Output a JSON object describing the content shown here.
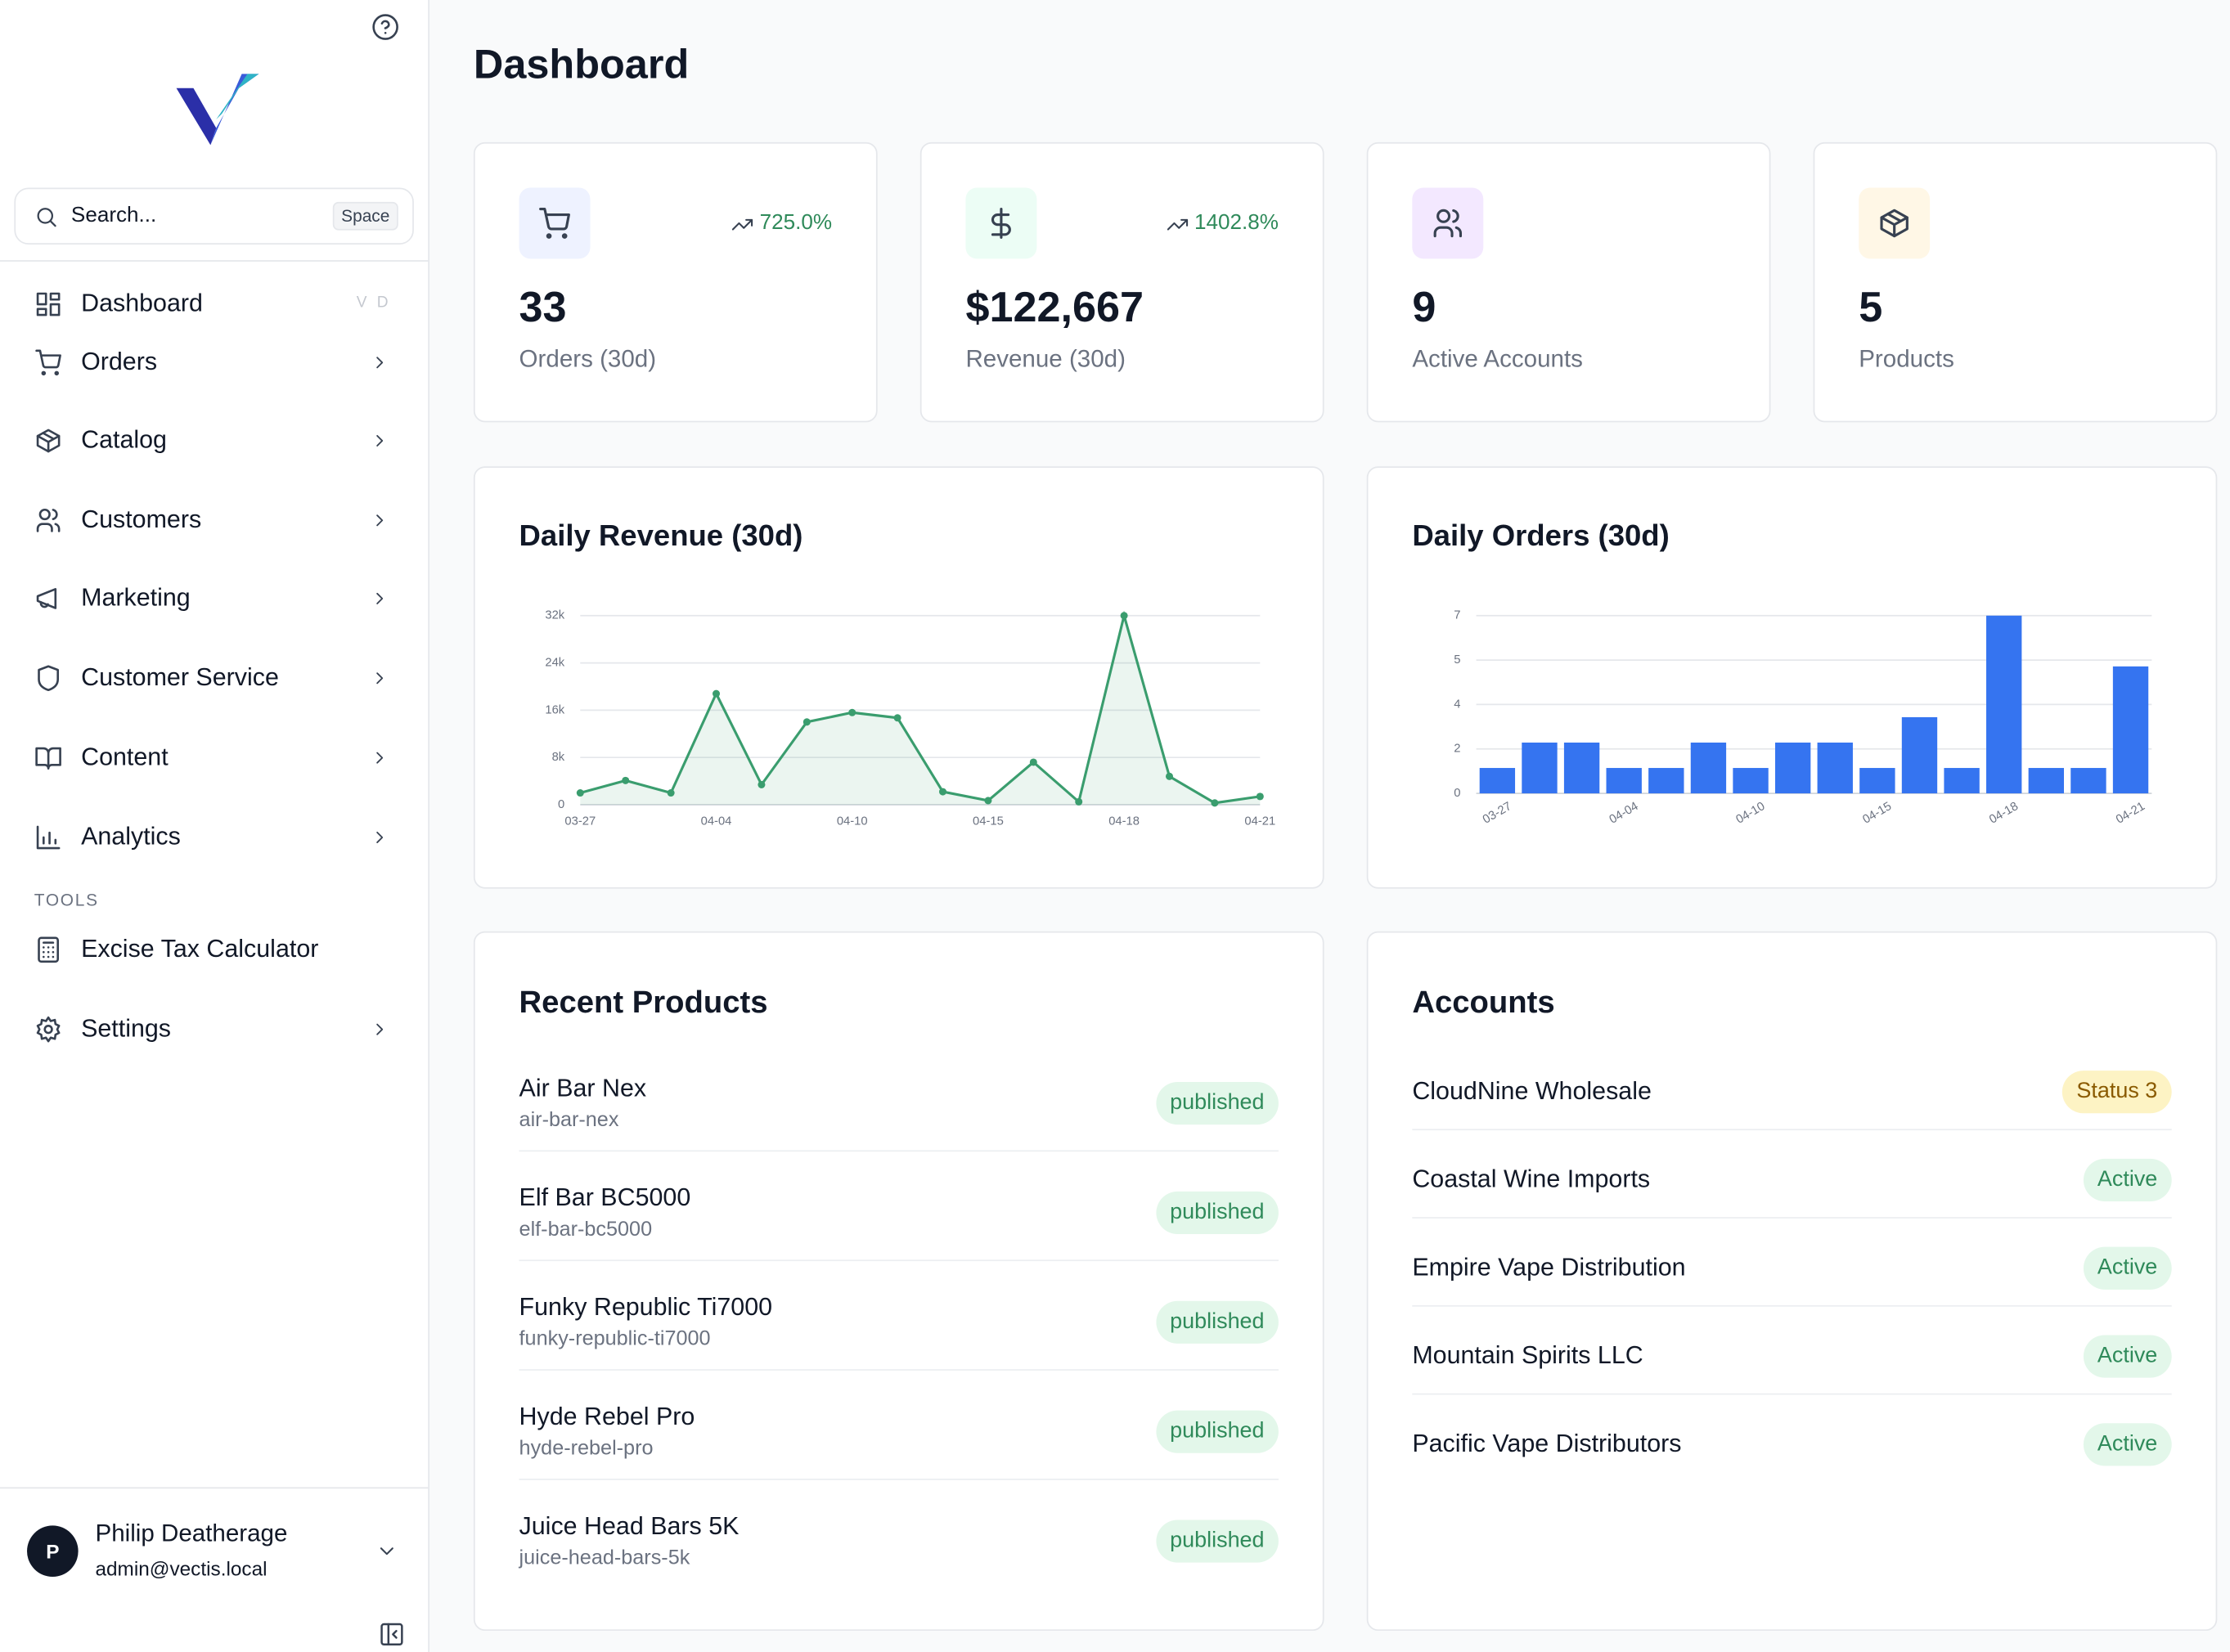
{
  "sidebar": {
    "search_placeholder": "Search...",
    "search_shortcut": "Space",
    "nav": [
      {
        "label": "Dashboard",
        "shortcut": "V D"
      },
      {
        "label": "Orders",
        "expandable": true
      },
      {
        "label": "Catalog",
        "expandable": true
      },
      {
        "label": "Customers",
        "expandable": true
      },
      {
        "label": "Marketing",
        "expandable": true
      },
      {
        "label": "Customer Service",
        "expandable": true
      },
      {
        "label": "Content",
        "expandable": true
      },
      {
        "label": "Analytics",
        "expandable": true
      }
    ],
    "section": "TOOLS",
    "tools": [
      {
        "label": "Excise Tax Calculator"
      },
      {
        "label": "Settings",
        "expandable": true
      }
    ],
    "user": {
      "initial": "P",
      "name": "Philip Deatherage",
      "email": "admin@vectis.local"
    }
  },
  "header": {
    "title": "Dashboard"
  },
  "stats": [
    {
      "value": 33,
      "label": "Orders (30d)",
      "trend": "725.0%"
    },
    {
      "value": "$122,667",
      "label": "Revenue (30d)",
      "trend": "1402.8%"
    },
    {
      "value": 9,
      "label": "Active Accounts"
    },
    {
      "value": 5,
      "label": "Products"
    }
  ],
  "chart_data": [
    {
      "type": "line",
      "title": "Daily Revenue (30d)",
      "categories": [
        "03-27",
        null,
        null,
        "04-04",
        null,
        null,
        "04-10",
        null,
        null,
        "04-15",
        null,
        null,
        "04-18",
        null,
        null,
        "04-21"
      ],
      "values": [
        2000,
        4100,
        2000,
        18800,
        3400,
        14000,
        15600,
        14700,
        2200,
        700,
        7200,
        500,
        32000,
        4800,
        300,
        1400
      ],
      "color": "#3a9d6e",
      "ylim": [
        0,
        32000
      ],
      "yticks": [
        0,
        {
          "value": 8000,
          "label": "8k"
        },
        {
          "value": 16000,
          "label": "16k"
        },
        {
          "value": 24000,
          "label": "24k"
        },
        {
          "value": 32000,
          "label": "32k"
        }
      ],
      "grid": true
    },
    {
      "type": "bar",
      "title": "Daily Orders (30d)",
      "categories": [
        "03-27",
        null,
        null,
        "04-04",
        null,
        null,
        "04-10",
        null,
        null,
        "04-15",
        null,
        null,
        "04-18",
        null,
        null,
        "04-21"
      ],
      "values": [
        1,
        2,
        2,
        1,
        1,
        2,
        1,
        2,
        2,
        1,
        3,
        1,
        7,
        1,
        1,
        5
      ],
      "color": "#3574f0",
      "ylim": [
        0,
        7
      ],
      "yticks": [
        0,
        {
          "value": 1.75,
          "label": "2"
        },
        {
          "value": 3.5,
          "label": "4"
        },
        {
          "value": 5.25,
          "label": "5"
        },
        7
      ],
      "grid": true
    }
  ],
  "recent_products": {
    "title": "Recent Products",
    "rows": [
      {
        "name": "Air Bar Nex",
        "slug": "air-bar-nex",
        "status": "published"
      },
      {
        "name": "Elf Bar BC5000",
        "slug": "elf-bar-bc5000",
        "status": "published"
      },
      {
        "name": "Funky Republic Ti7000",
        "slug": "funky-republic-ti7000",
        "status": "published"
      },
      {
        "name": "Hyde Rebel Pro",
        "slug": "hyde-rebel-pro",
        "status": "published"
      },
      {
        "name": "Juice Head Bars 5K",
        "slug": "juice-head-bars-5k",
        "status": "published"
      }
    ]
  },
  "accounts": {
    "title": "Accounts",
    "rows": [
      {
        "name": "CloudNine Wholesale",
        "status": "Status 3"
      },
      {
        "name": "Coastal Wine Imports",
        "status": "Active"
      },
      {
        "name": "Empire Vape Distribution",
        "status": "Active"
      },
      {
        "name": "Mountain Spirits LLC",
        "status": "Active"
      },
      {
        "name": "Pacific Vape Distributors",
        "status": "Active"
      }
    ]
  }
}
